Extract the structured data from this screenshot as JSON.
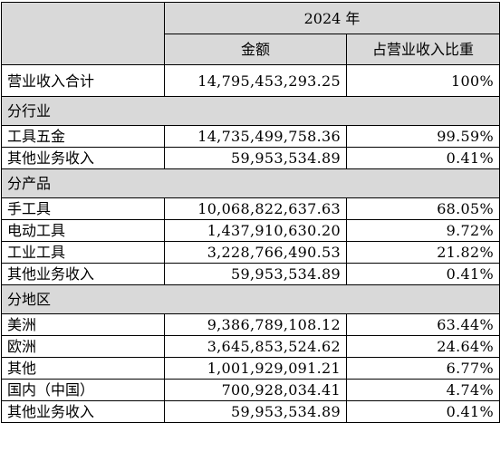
{
  "header": {
    "year": "2024 年",
    "amount": "金额",
    "ratio": "占营业收入比重"
  },
  "total": {
    "label": "营业收入合计",
    "amount": "14,795,453,293.25",
    "ratio": "100%"
  },
  "sections": [
    {
      "title": "分行业",
      "rows": [
        {
          "label": "工具五金",
          "amount": "14,735,499,758.36",
          "ratio": "99.59%"
        },
        {
          "label": "其他业务收入",
          "amount": "59,953,534.89",
          "ratio": "0.41%"
        }
      ]
    },
    {
      "title": "分产品",
      "rows": [
        {
          "label": "手工具",
          "amount": "10,068,822,637.63",
          "ratio": "68.05%"
        },
        {
          "label": "电动工具",
          "amount": "1,437,910,630.20",
          "ratio": "9.72%"
        },
        {
          "label": "工业工具",
          "amount": "3,228,766,490.53",
          "ratio": "21.82%"
        },
        {
          "label": "其他业务收入",
          "amount": "59,953,534.89",
          "ratio": "0.41%"
        }
      ]
    },
    {
      "title": "分地区",
      "rows": [
        {
          "label": "美洲",
          "amount": "9,386,789,108.12",
          "ratio": "63.44%"
        },
        {
          "label": "欧洲",
          "amount": "3,645,853,524.62",
          "ratio": "24.64%"
        },
        {
          "label": "其他",
          "amount": "1,001,929,091.21",
          "ratio": "6.77%"
        },
        {
          "label": "国内（中国）",
          "amount": "700,928,034.41",
          "ratio": "4.74%"
        },
        {
          "label": "其他业务收入",
          "amount": "59,953,534.89",
          "ratio": "0.41%"
        }
      ]
    }
  ]
}
